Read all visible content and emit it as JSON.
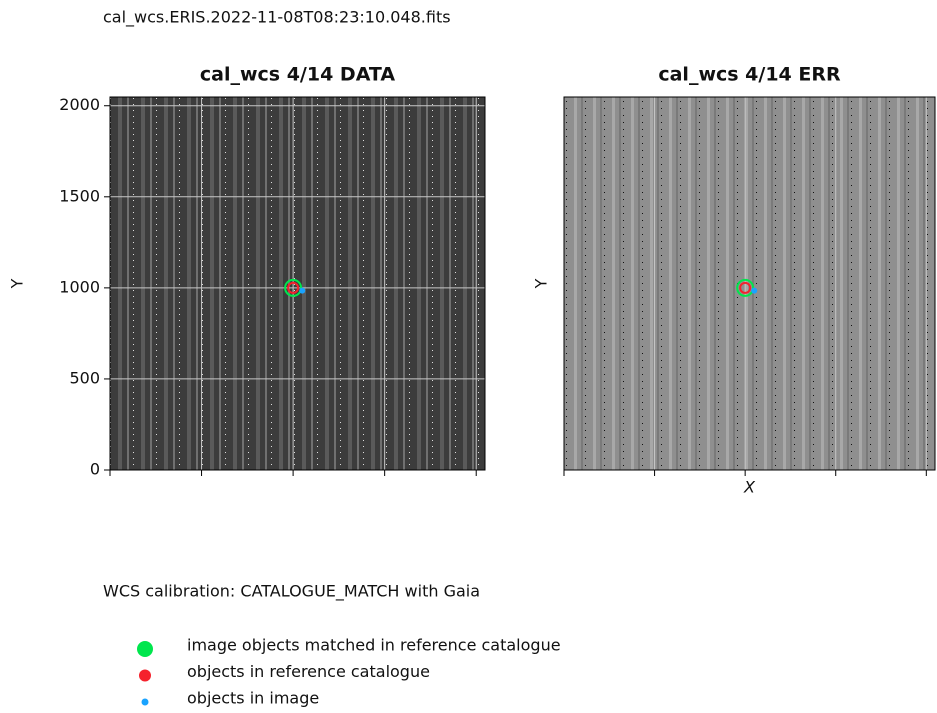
{
  "suptitle": "cal_wcs.ERIS.2022-11-08T08:23:10.048.fits",
  "caption": "WCS calibration: CATALOGUE_MATCH with Gaia",
  "chart_data": [
    {
      "type": "image",
      "title": "cal_wcs 4/14 DATA",
      "ylabel": "Y",
      "xlim": [
        0,
        2048
      ],
      "ylim": [
        0,
        2048
      ],
      "xticks": [
        0,
        500,
        1000,
        1500,
        2000
      ],
      "yticks": [
        0,
        500,
        1000,
        1500,
        2000
      ],
      "grid": true,
      "series": [
        {
          "name": "image objects matched in reference catalogue",
          "color": "#00e64d",
          "x": [
            1000
          ],
          "y": [
            1000
          ]
        },
        {
          "name": "objects in reference catalogue",
          "color": "#f5222d",
          "x": [
            1000
          ],
          "y": [
            1000
          ]
        },
        {
          "name": "objects in image",
          "color": "#1aa3ff",
          "x": [
            1050
          ],
          "y": [
            985
          ]
        }
      ]
    },
    {
      "type": "image",
      "title": "cal_wcs 4/14 ERR",
      "ylabel": "Y",
      "xlabel": "X",
      "xlim": [
        0,
        2048
      ],
      "ylim": [
        0,
        2048
      ],
      "xticks": [
        0,
        500,
        1000,
        1500,
        2000
      ],
      "grid": true,
      "series": [
        {
          "color": "#00e64d",
          "x": [
            1000
          ],
          "y": [
            1000
          ]
        },
        {
          "color": "#f5222d",
          "x": [
            1000
          ],
          "y": [
            1000
          ]
        },
        {
          "color": "#1aa3ff",
          "x": [
            1050
          ],
          "y": [
            985
          ]
        }
      ]
    }
  ]
}
